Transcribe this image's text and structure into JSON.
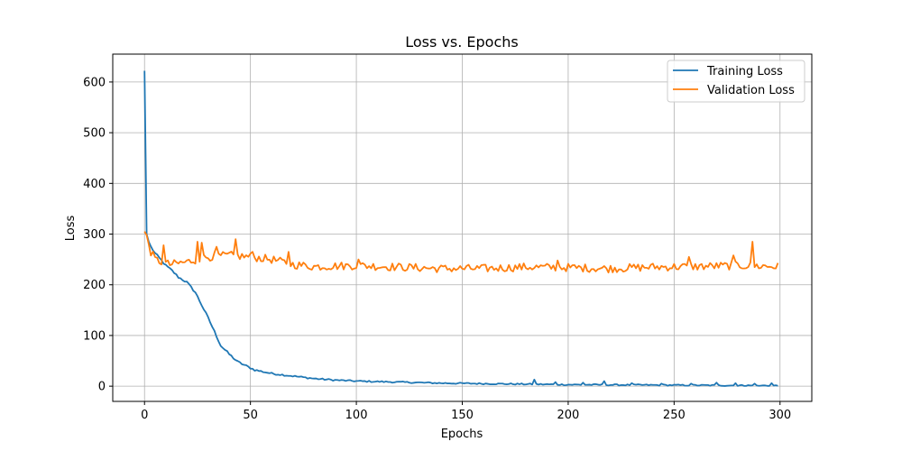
{
  "chart_data": {
    "type": "line",
    "title": "Loss vs. Epochs",
    "xlabel": "Epochs",
    "ylabel": "Loss",
    "xlim": [
      -15,
      315
    ],
    "ylim": [
      -30,
      655
    ],
    "xticks": [
      0,
      50,
      100,
      150,
      200,
      250,
      300
    ],
    "yticks": [
      0,
      100,
      200,
      300,
      400,
      500,
      600
    ],
    "grid": true,
    "legend_position": "top-right",
    "series": [
      {
        "name": "Training Loss",
        "color": "#1f77b4",
        "anchors": [
          [
            0,
            622
          ],
          [
            1,
            300
          ],
          [
            2,
            285
          ],
          [
            3,
            275
          ],
          [
            5,
            262
          ],
          [
            8,
            248
          ],
          [
            10,
            238
          ],
          [
            13,
            228
          ],
          [
            16,
            215
          ],
          [
            20,
            205
          ],
          [
            24,
            185
          ],
          [
            27,
            160
          ],
          [
            30,
            135
          ],
          [
            33,
            108
          ],
          [
            36,
            80
          ],
          [
            40,
            63
          ],
          [
            44,
            48
          ],
          [
            48,
            40
          ],
          [
            52,
            32
          ],
          [
            60,
            25
          ],
          [
            70,
            20
          ],
          [
            80,
            15
          ],
          [
            90,
            12
          ],
          [
            100,
            10
          ],
          [
            120,
            8
          ],
          [
            140,
            6
          ],
          [
            160,
            5
          ],
          [
            180,
            4
          ],
          [
            200,
            3
          ],
          [
            250,
            2
          ],
          [
            299,
            1
          ]
        ],
        "noise": 2.2,
        "spikes": [
          [
            184,
            13
          ],
          [
            194,
            8
          ],
          [
            207,
            7
          ],
          [
            217,
            10
          ],
          [
            230,
            6
          ],
          [
            244,
            5
          ],
          [
            258,
            5
          ],
          [
            270,
            7
          ],
          [
            279,
            6
          ],
          [
            288,
            5
          ],
          [
            296,
            6
          ]
        ]
      },
      {
        "name": "Validation Loss",
        "color": "#ff7f0e",
        "anchors": [
          [
            0,
            305
          ],
          [
            1,
            298
          ],
          [
            2,
            280
          ],
          [
            3,
            265
          ],
          [
            5,
            250
          ],
          [
            8,
            245
          ],
          [
            12,
            240
          ],
          [
            20,
            245
          ],
          [
            30,
            255
          ],
          [
            40,
            258
          ],
          [
            50,
            255
          ],
          [
            60,
            250
          ],
          [
            70,
            240
          ],
          [
            80,
            236
          ],
          [
            100,
            238
          ],
          [
            120,
            235
          ],
          [
            140,
            232
          ],
          [
            160,
            232
          ],
          [
            180,
            235
          ],
          [
            200,
            234
          ],
          [
            220,
            232
          ],
          [
            240,
            235
          ],
          [
            260,
            236
          ],
          [
            280,
            238
          ],
          [
            299,
            236
          ]
        ],
        "noise": 8,
        "spikes": [
          [
            9,
            278
          ],
          [
            25,
            285
          ],
          [
            27,
            283
          ],
          [
            34,
            275
          ],
          [
            43,
            290
          ],
          [
            51,
            265
          ],
          [
            68,
            265
          ],
          [
            101,
            250
          ],
          [
            195,
            248
          ],
          [
            257,
            255
          ],
          [
            278,
            258
          ],
          [
            287,
            285
          ]
        ]
      }
    ]
  }
}
